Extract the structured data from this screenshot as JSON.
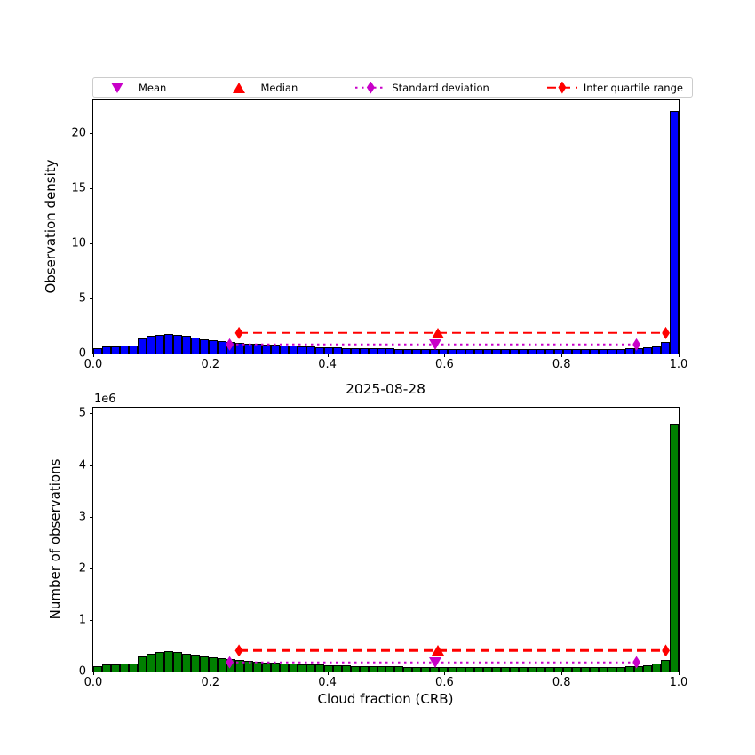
{
  "figure": {
    "title": "2025-08-28",
    "legend": [
      {
        "label": "Mean",
        "marker": "triangle-down",
        "line": "none",
        "color": "#C800C8"
      },
      {
        "label": "Median",
        "marker": "triangle-up",
        "line": "none",
        "color": "#FF0000"
      },
      {
        "label": "Standard deviation",
        "marker": "diamond",
        "line": "dotted",
        "color": "#C800C8"
      },
      {
        "label": "Inter quartile range",
        "marker": "diamond",
        "line": "dashed",
        "color": "#FF0000"
      }
    ]
  },
  "colors": {
    "hist_top_fill": "#0000FF",
    "hist_bottom_fill": "#008000",
    "bar_edge": "#000000",
    "mean_marker": "#C800C8",
    "median_marker": "#FF0000",
    "std_line": "#C800C8",
    "iqr_line": "#FF0000",
    "axes_edge": "#000000"
  },
  "stats": {
    "mean_x": 0.584,
    "median_x": 0.589,
    "std_range_x": [
      0.233,
      0.928
    ],
    "iqr_range_x": [
      0.249,
      0.978
    ],
    "std_line_density": 0.82,
    "iqr_line_density": 1.86
  },
  "chart_data": [
    {
      "type": "bar",
      "subtype": "histogram",
      "ylabel": "Observation density",
      "xlabel": "",
      "bar_color": "#0000FF",
      "bin_start": 0.0,
      "bin_width": 0.0151515,
      "xlim": [
        0.0,
        1.0
      ],
      "ylim": [
        0,
        22.96
      ],
      "counts_scale": 1,
      "grid": false,
      "densities": [
        0.45,
        0.62,
        0.62,
        0.72,
        0.74,
        1.36,
        1.6,
        1.73,
        1.81,
        1.73,
        1.6,
        1.47,
        1.33,
        1.23,
        1.15,
        1.07,
        0.99,
        0.91,
        0.86,
        0.81,
        0.77,
        0.73,
        0.69,
        0.66,
        0.63,
        0.6,
        0.57,
        0.55,
        0.52,
        0.5,
        0.48,
        0.47,
        0.46,
        0.45,
        0.44,
        0.43,
        0.43,
        0.42,
        0.42,
        0.41,
        0.41,
        0.41,
        0.4,
        0.4,
        0.4,
        0.4,
        0.4,
        0.4,
        0.39,
        0.39,
        0.39,
        0.39,
        0.39,
        0.39,
        0.39,
        0.39,
        0.39,
        0.4,
        0.41,
        0.42,
        0.45,
        0.49,
        0.55,
        0.68,
        1.04,
        22.0
      ],
      "xticks": [
        {
          "v": 0.0,
          "label": "0.0"
        },
        {
          "v": 0.2,
          "label": "0.2"
        },
        {
          "v": 0.4,
          "label": "0.4"
        },
        {
          "v": 0.6,
          "label": "0.6"
        },
        {
          "v": 0.8,
          "label": "0.8"
        },
        {
          "v": 1.0,
          "label": "1.0"
        }
      ],
      "yticks": [
        {
          "v": 0,
          "label": "0"
        },
        {
          "v": 5,
          "label": "5"
        },
        {
          "v": 10,
          "label": "10"
        },
        {
          "v": 15,
          "label": "15"
        },
        {
          "v": 20,
          "label": "20"
        }
      ]
    },
    {
      "type": "bar",
      "subtype": "histogram",
      "title": "2025-08-28",
      "ylabel": "Number of observations",
      "xlabel": "Cloud fraction (CRB)",
      "offset_label": "1e6",
      "bar_color": "#008000",
      "bin_start": 0.0,
      "bin_width": 0.0151515,
      "xlim": [
        0.0,
        1.0
      ],
      "ylim": [
        0,
        5110000
      ],
      "counts_scale": 218182,
      "grid": false,
      "note": "bar values = densities of top plot multiplied by counts_scale; peak bin ≈ 4.8e6",
      "densities": [
        0.45,
        0.62,
        0.62,
        0.72,
        0.74,
        1.36,
        1.6,
        1.73,
        1.81,
        1.73,
        1.6,
        1.47,
        1.33,
        1.23,
        1.15,
        1.07,
        0.99,
        0.91,
        0.86,
        0.81,
        0.77,
        0.73,
        0.69,
        0.66,
        0.63,
        0.6,
        0.57,
        0.55,
        0.52,
        0.5,
        0.48,
        0.47,
        0.46,
        0.45,
        0.44,
        0.43,
        0.43,
        0.42,
        0.42,
        0.41,
        0.41,
        0.41,
        0.4,
        0.4,
        0.4,
        0.4,
        0.4,
        0.4,
        0.39,
        0.39,
        0.39,
        0.39,
        0.39,
        0.39,
        0.39,
        0.39,
        0.39,
        0.4,
        0.41,
        0.42,
        0.45,
        0.49,
        0.55,
        0.68,
        1.04,
        22.0
      ],
      "xticks": [
        {
          "v": 0.0,
          "label": "0.0"
        },
        {
          "v": 0.2,
          "label": "0.2"
        },
        {
          "v": 0.4,
          "label": "0.4"
        },
        {
          "v": 0.6,
          "label": "0.6"
        },
        {
          "v": 0.8,
          "label": "0.8"
        },
        {
          "v": 1.0,
          "label": "1.0"
        }
      ],
      "yticks": [
        {
          "v": 0,
          "label": "0"
        },
        {
          "v": 1000000,
          "label": "1"
        },
        {
          "v": 2000000,
          "label": "2"
        },
        {
          "v": 3000000,
          "label": "3"
        },
        {
          "v": 4000000,
          "label": "4"
        },
        {
          "v": 5000000,
          "label": "5"
        }
      ]
    }
  ]
}
